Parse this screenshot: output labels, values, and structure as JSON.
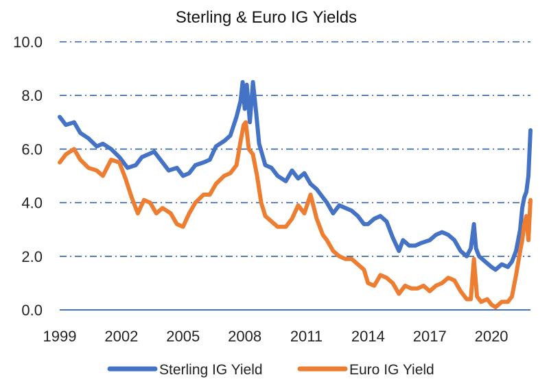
{
  "chart_data": {
    "type": "line",
    "title": "Sterling & Euro IG Yields",
    "xlabel": "",
    "ylabel": "",
    "xlim": [
      1999,
      2021.9
    ],
    "ylim": [
      0,
      10
    ],
    "grid": "horizontal dash-dot",
    "legend_position": "bottom",
    "x_ticks": [
      "1999",
      "2002",
      "2005",
      "2008",
      "2011",
      "2014",
      "2017",
      "2020"
    ],
    "y_ticks": [
      "0.0",
      "2.0",
      "4.0",
      "6.0",
      "8.0",
      "10.0"
    ],
    "colors": {
      "axis": "#4472c4",
      "grid": "#2e5fa8"
    },
    "series": [
      {
        "name": "Sterling IG Yield",
        "color": "#4472c4",
        "x": [
          1999.0,
          1999.3,
          1999.7,
          2000.0,
          2000.4,
          2000.8,
          2001.1,
          2001.5,
          2001.9,
          2002.3,
          2002.7,
          2003.0,
          2003.3,
          2003.6,
          2004.0,
          2004.3,
          2004.7,
          2005.0,
          2005.3,
          2005.6,
          2006.0,
          2006.3,
          2006.6,
          2007.0,
          2007.3,
          2007.6,
          2007.8,
          2007.9,
          2008.0,
          2008.1,
          2008.25,
          2008.4,
          2008.55,
          2008.7,
          2009.0,
          2009.3,
          2009.6,
          2010.0,
          2010.3,
          2010.6,
          2010.9,
          2011.2,
          2011.5,
          2011.8,
          2012.0,
          2012.3,
          2012.6,
          2012.9,
          2013.2,
          2013.5,
          2013.8,
          2014.0,
          2014.3,
          2014.6,
          2014.9,
          2015.2,
          2015.5,
          2015.7,
          2016.0,
          2016.3,
          2016.6,
          2017.0,
          2017.3,
          2017.6,
          2017.9,
          2018.2,
          2018.5,
          2018.8,
          2019.0,
          2019.15,
          2019.25,
          2019.4,
          2019.7,
          2020.0,
          2020.2,
          2020.5,
          2020.8,
          2021.0,
          2021.2,
          2021.4,
          2021.5,
          2021.6,
          2021.7,
          2021.8,
          2021.9
        ],
        "values": [
          7.2,
          6.9,
          7.0,
          6.6,
          6.4,
          6.1,
          6.2,
          6.0,
          5.7,
          5.3,
          5.4,
          5.7,
          5.8,
          5.9,
          5.5,
          5.2,
          5.3,
          5.0,
          5.1,
          5.4,
          5.5,
          5.6,
          6.1,
          6.3,
          6.5,
          7.2,
          7.8,
          8.5,
          7.5,
          8.4,
          7.0,
          8.5,
          7.4,
          6.2,
          5.4,
          5.3,
          5.0,
          4.8,
          5.2,
          4.9,
          5.1,
          4.7,
          4.5,
          4.2,
          4.0,
          3.6,
          3.9,
          3.8,
          3.7,
          3.5,
          3.2,
          3.2,
          3.4,
          3.5,
          3.3,
          2.7,
          2.2,
          2.6,
          2.4,
          2.4,
          2.5,
          2.6,
          2.8,
          2.9,
          2.8,
          2.6,
          2.2,
          2.0,
          2.3,
          3.2,
          2.3,
          2.0,
          1.8,
          1.6,
          1.5,
          1.7,
          1.6,
          1.8,
          2.2,
          3.0,
          3.8,
          4.2,
          4.4,
          5.0,
          6.7
        ]
      },
      {
        "name": "Euro IG Yield",
        "color": "#ed7d31",
        "x": [
          1999.0,
          1999.3,
          1999.7,
          2000.0,
          2000.4,
          2000.8,
          2001.1,
          2001.5,
          2001.9,
          2002.2,
          2002.5,
          2002.8,
          2003.1,
          2003.4,
          2003.7,
          2004.0,
          2004.4,
          2004.7,
          2005.0,
          2005.3,
          2005.6,
          2006.0,
          2006.3,
          2006.6,
          2007.0,
          2007.3,
          2007.6,
          2007.8,
          2007.95,
          2008.05,
          2008.2,
          2008.4,
          2008.6,
          2008.8,
          2009.0,
          2009.3,
          2009.6,
          2010.0,
          2010.3,
          2010.6,
          2010.9,
          2011.2,
          2011.5,
          2011.8,
          2012.0,
          2012.3,
          2012.6,
          2012.9,
          2013.2,
          2013.5,
          2013.8,
          2014.0,
          2014.3,
          2014.6,
          2014.9,
          2015.2,
          2015.5,
          2015.8,
          2016.1,
          2016.4,
          2016.7,
          2017.0,
          2017.3,
          2017.6,
          2017.9,
          2018.2,
          2018.5,
          2018.8,
          2019.0,
          2019.15,
          2019.3,
          2019.5,
          2019.8,
          2020.0,
          2020.2,
          2020.5,
          2020.8,
          2021.0,
          2021.2,
          2021.4,
          2021.5,
          2021.6,
          2021.7,
          2021.8,
          2021.9
        ],
        "values": [
          5.5,
          5.8,
          6.0,
          5.6,
          5.3,
          5.2,
          5.0,
          5.6,
          5.5,
          4.9,
          4.2,
          3.6,
          4.1,
          4.0,
          3.6,
          3.8,
          3.6,
          3.2,
          3.1,
          3.6,
          4.0,
          4.3,
          4.3,
          4.7,
          5.0,
          5.1,
          5.4,
          6.3,
          6.9,
          7.0,
          6.0,
          5.8,
          5.0,
          4.0,
          3.5,
          3.3,
          3.1,
          3.1,
          3.4,
          3.9,
          3.6,
          4.3,
          3.4,
          2.8,
          2.6,
          2.2,
          2.0,
          1.9,
          1.9,
          1.7,
          1.5,
          1.0,
          0.9,
          1.3,
          1.2,
          1.0,
          0.6,
          0.9,
          0.8,
          0.8,
          0.9,
          0.7,
          0.9,
          1.0,
          1.2,
          1.1,
          0.7,
          0.4,
          0.4,
          1.9,
          0.5,
          0.3,
          0.4,
          0.2,
          0.1,
          0.3,
          0.3,
          0.5,
          1.3,
          2.2,
          2.6,
          3.2,
          3.5,
          2.6,
          4.1
        ]
      }
    ]
  }
}
